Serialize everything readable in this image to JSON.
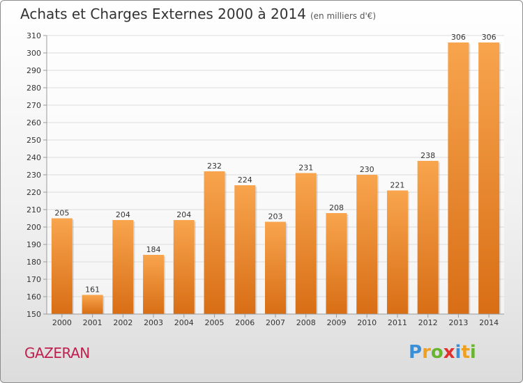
{
  "header": {
    "title": "Achats et Charges Externes 2000 à 2014",
    "subtitle": "(en milliers d'€)"
  },
  "footer": {
    "commune": "GAZERAN",
    "logo_letters": [
      "P",
      "r",
      "o",
      "x",
      "i",
      "t",
      "i"
    ],
    "logo_colors": [
      "#3a8fd6",
      "#f0a020",
      "#6ab530",
      "#e03030",
      "#3a8fd6",
      "#f0a020",
      "#6ab530"
    ]
  },
  "colors": {
    "bar_light": "#f8a54e",
    "bar_dark": "#d86e15",
    "grid": "#dcdcdc",
    "axis_text": "#333333",
    "title": "#333333",
    "commune": "#c01f4e"
  },
  "chart_data": {
    "type": "bar",
    "title": "Achats et Charges Externes 2000 à 2014",
    "subtitle": "(en milliers d'€)",
    "xlabel": "",
    "ylabel": "",
    "categories": [
      "2000",
      "2001",
      "2002",
      "2003",
      "2004",
      "2005",
      "2006",
      "2007",
      "2008",
      "2009",
      "2010",
      "2011",
      "2012",
      "2013",
      "2014"
    ],
    "values": [
      205,
      161,
      204,
      184,
      204,
      232,
      224,
      203,
      231,
      208,
      230,
      221,
      238,
      306,
      306
    ],
    "ylim": [
      150,
      310
    ],
    "yticks": [
      150,
      160,
      170,
      180,
      190,
      200,
      210,
      220,
      230,
      240,
      250,
      260,
      270,
      280,
      290,
      300,
      310
    ],
    "grid": true,
    "legend": "none"
  }
}
